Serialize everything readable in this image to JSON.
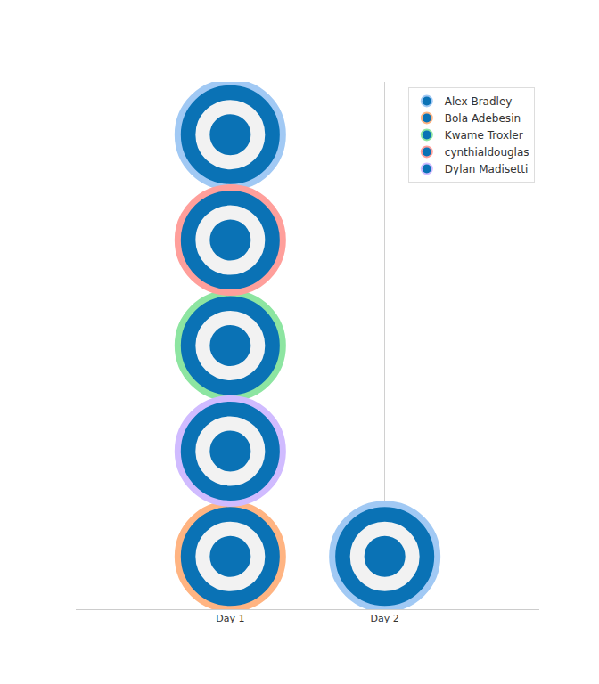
{
  "chart_data": {
    "type": "scatter",
    "categories": [
      "Day 1",
      "Day 2"
    ],
    "series": [
      {
        "name": "Alex Bradley",
        "color": "#a1c9f4",
        "x": [
          "Day 1",
          "Day 2"
        ],
        "values": [
          5,
          1
        ]
      },
      {
        "name": "Bola Adebesin",
        "color": "#ffb482",
        "x": [
          "Day 1"
        ],
        "values": [
          1
        ]
      },
      {
        "name": "Kwame Troxler",
        "color": "#8de5a1",
        "x": [
          "Day 1"
        ],
        "values": [
          3
        ]
      },
      {
        "name": "cynthialdouglas",
        "color": "#ff9f9b",
        "x": [
          "Day 1"
        ],
        "values": [
          4
        ]
      },
      {
        "name": "Dylan Madisetti",
        "color": "#d0bbff",
        "x": [
          "Day 1"
        ],
        "values": [
          2
        ]
      }
    ],
    "ylim": [
      0.5,
      5.5
    ],
    "grid": true,
    "legend": "top right",
    "tick_labels": "x"
  }
}
